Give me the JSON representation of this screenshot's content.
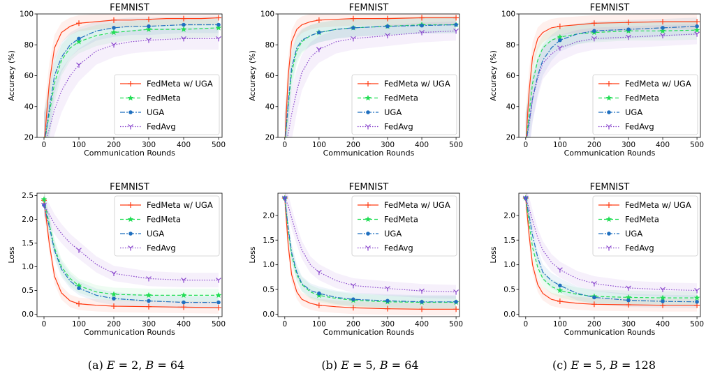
{
  "captions": [
    {
      "prefix": "(a) ",
      "e_sym": "E",
      "e_val": " = 2, ",
      "b_sym": "B",
      "b_val": " = 64"
    },
    {
      "prefix": "(b) ",
      "e_sym": "E",
      "e_val": " = 5, ",
      "b_sym": "B",
      "b_val": " = 64"
    },
    {
      "prefix": "(c) ",
      "e_sym": "E",
      "e_val": " = 5, ",
      "b_sym": "B",
      "b_val": " = 128"
    }
  ],
  "legend": [
    "FedMeta w/ UGA",
    "FedMeta",
    "UGA",
    "FedAvg"
  ],
  "colors": {
    "FedMeta w/ UGA": "#ff3c14",
    "FedMeta": "#22dd55",
    "UGA": "#1f6fbf",
    "FedAvg": "#8844cc"
  },
  "chart_data": [
    {
      "type": "line",
      "title": "FEMNIST",
      "xlabel": "Communication Rounds",
      "ylabel": "Accuracy (%)",
      "xlim": [
        -20,
        510
      ],
      "ylim": [
        20,
        100
      ],
      "xticks": [
        0,
        100,
        200,
        300,
        400,
        500
      ],
      "yticks": [
        20,
        40,
        60,
        80,
        100
      ],
      "tick_labels_y": [
        "20",
        "40",
        "60",
        "80",
        "100"
      ],
      "legend_loc": "lower right",
      "series": [
        {
          "name": "FedMeta w/ UGA",
          "x": [
            0,
            15,
            30,
            50,
            75,
            100,
            150,
            200,
            250,
            300,
            350,
            400,
            450,
            500
          ],
          "y": [
            15,
            55,
            78,
            88,
            92,
            94,
            95,
            96,
            96,
            96.5,
            97,
            97,
            97,
            97.5
          ]
        },
        {
          "name": "FedMeta",
          "x": [
            0,
            15,
            30,
            50,
            75,
            100,
            150,
            200,
            250,
            300,
            350,
            400,
            450,
            500
          ],
          "y": [
            15,
            35,
            55,
            70,
            78,
            82,
            86,
            88,
            89,
            90,
            90,
            90,
            90.5,
            91
          ]
        },
        {
          "name": "UGA",
          "x": [
            0,
            15,
            30,
            50,
            75,
            100,
            150,
            200,
            250,
            300,
            350,
            400,
            450,
            500
          ],
          "y": [
            15,
            38,
            60,
            72,
            80,
            84,
            89,
            91,
            92,
            92,
            92.5,
            93,
            93,
            93
          ]
        },
        {
          "name": "FedAvg",
          "x": [
            0,
            15,
            30,
            50,
            75,
            100,
            150,
            200,
            250,
            300,
            350,
            400,
            450,
            500
          ],
          "y": [
            15,
            25,
            38,
            50,
            60,
            67,
            76,
            80,
            82,
            83,
            83.5,
            84,
            84,
            84
          ]
        }
      ]
    },
    {
      "type": "line",
      "title": "FEMNIST",
      "xlabel": "Communication Rounds",
      "ylabel": "Accuracy (%)",
      "xlim": [
        -20,
        510
      ],
      "ylim": [
        20,
        100
      ],
      "xticks": [
        0,
        100,
        200,
        300,
        400,
        500
      ],
      "yticks": [
        20,
        40,
        60,
        80,
        100
      ],
      "tick_labels_y": [
        "20",
        "40",
        "60",
        "80",
        "100"
      ],
      "legend_loc": "lower right",
      "series": [
        {
          "name": "FedMeta w/ UGA",
          "x": [
            0,
            10,
            20,
            35,
            50,
            75,
            100,
            150,
            200,
            300,
            400,
            500
          ],
          "y": [
            15,
            60,
            82,
            90,
            93,
            95,
            96,
            96.5,
            97,
            97,
            97.5,
            97.5
          ]
        },
        {
          "name": "FedMeta",
          "x": [
            0,
            10,
            20,
            35,
            50,
            75,
            100,
            150,
            200,
            300,
            400,
            500
          ],
          "y": [
            15,
            40,
            62,
            76,
            82,
            86,
            88,
            90,
            91,
            92,
            93,
            93
          ]
        },
        {
          "name": "UGA",
          "x": [
            0,
            10,
            20,
            35,
            50,
            75,
            100,
            150,
            200,
            300,
            400,
            500
          ],
          "y": [
            15,
            42,
            65,
            78,
            83,
            86,
            88,
            90,
            91,
            92,
            92.5,
            93
          ]
        },
        {
          "name": "FedAvg",
          "x": [
            0,
            10,
            20,
            35,
            50,
            75,
            100,
            150,
            200,
            300,
            400,
            500
          ],
          "y": [
            15,
            22,
            35,
            50,
            62,
            72,
            77,
            82,
            84,
            86,
            88,
            89
          ]
        }
      ]
    },
    {
      "type": "line",
      "title": "FEMNIST",
      "xlabel": "Communication Rounds",
      "ylabel": "Accuracy (%)",
      "xlim": [
        -20,
        510
      ],
      "ylim": [
        20,
        100
      ],
      "xticks": [
        0,
        100,
        200,
        300,
        400,
        500
      ],
      "yticks": [
        20,
        40,
        60,
        80,
        100
      ],
      "tick_labels_y": [
        "20",
        "40",
        "60",
        "80",
        "100"
      ],
      "legend_loc": "lower right",
      "series": [
        {
          "name": "FedMeta w/ UGA",
          "x": [
            0,
            10,
            20,
            35,
            50,
            75,
            100,
            150,
            200,
            300,
            400,
            500
          ],
          "y": [
            15,
            50,
            72,
            84,
            88,
            91,
            92,
            93,
            94,
            94.5,
            95,
            95
          ]
        },
        {
          "name": "FedMeta",
          "x": [
            0,
            10,
            20,
            35,
            50,
            75,
            100,
            150,
            200,
            300,
            400,
            500
          ],
          "y": [
            15,
            35,
            55,
            70,
            78,
            83,
            85,
            87,
            88,
            89,
            89,
            89.5
          ]
        },
        {
          "name": "UGA",
          "x": [
            0,
            10,
            20,
            35,
            50,
            75,
            100,
            150,
            200,
            300,
            400,
            500
          ],
          "y": [
            15,
            30,
            45,
            60,
            70,
            78,
            83,
            87,
            89,
            90,
            91,
            92
          ]
        },
        {
          "name": "FedAvg",
          "x": [
            0,
            10,
            20,
            35,
            50,
            75,
            100,
            150,
            200,
            300,
            400,
            500
          ],
          "y": [
            15,
            28,
            45,
            58,
            68,
            74,
            78,
            82,
            84,
            85,
            86,
            87
          ]
        }
      ]
    },
    {
      "type": "line",
      "title": "FEMNIST",
      "xlabel": "Communication Rounds",
      "ylabel": "Loss",
      "xlim": [
        -20,
        510
      ],
      "ylim": [
        -0.05,
        2.55
      ],
      "xticks": [
        0,
        100,
        200,
        300,
        400,
        500
      ],
      "yticks": [
        0.0,
        0.5,
        1.0,
        1.5,
        2.0,
        2.5
      ],
      "tick_labels_y": [
        "0.0",
        "0.5",
        "1.0",
        "1.5",
        "2.0",
        "2.5"
      ],
      "legend_loc": "upper right",
      "series": [
        {
          "name": "FedMeta w/ UGA",
          "x": [
            0,
            15,
            30,
            50,
            75,
            100,
            150,
            200,
            300,
            400,
            500
          ],
          "y": [
            2.4,
            1.5,
            0.8,
            0.45,
            0.28,
            0.22,
            0.19,
            0.17,
            0.16,
            0.15,
            0.14
          ]
        },
        {
          "name": "FedMeta",
          "x": [
            0,
            15,
            30,
            50,
            75,
            100,
            150,
            200,
            300,
            400,
            500
          ],
          "y": [
            2.42,
            1.9,
            1.4,
            1.0,
            0.75,
            0.6,
            0.47,
            0.42,
            0.4,
            0.4,
            0.4
          ]
        },
        {
          "name": "UGA",
          "x": [
            0,
            15,
            30,
            50,
            75,
            100,
            150,
            200,
            300,
            400,
            500
          ],
          "y": [
            2.3,
            1.85,
            1.35,
            0.95,
            0.7,
            0.55,
            0.4,
            0.33,
            0.28,
            0.25,
            0.25
          ]
        },
        {
          "name": "FedAvg",
          "x": [
            0,
            15,
            30,
            50,
            75,
            100,
            150,
            200,
            300,
            400,
            500
          ],
          "y": [
            2.3,
            2.1,
            1.9,
            1.7,
            1.5,
            1.35,
            1.05,
            0.86,
            0.75,
            0.72,
            0.72
          ]
        }
      ]
    },
    {
      "type": "line",
      "title": "FEMNIST",
      "xlabel": "Communication Rounds",
      "ylabel": "Loss",
      "xlim": [
        -20,
        510
      ],
      "ylim": [
        -0.05,
        2.45
      ],
      "xticks": [
        0,
        100,
        200,
        300,
        400,
        500
      ],
      "yticks": [
        0.0,
        0.5,
        1.0,
        1.5,
        2.0
      ],
      "tick_labels_y": [
        "0.0",
        "0.5",
        "1.0",
        "1.5",
        "2.0"
      ],
      "legend_loc": "upper right",
      "series": [
        {
          "name": "FedMeta w/ UGA",
          "x": [
            0,
            10,
            20,
            35,
            50,
            75,
            100,
            150,
            200,
            300,
            400,
            500
          ],
          "y": [
            2.35,
            1.4,
            0.8,
            0.45,
            0.3,
            0.22,
            0.18,
            0.15,
            0.13,
            0.11,
            0.1,
            0.1
          ]
        },
        {
          "name": "FedMeta",
          "x": [
            0,
            10,
            20,
            35,
            50,
            75,
            100,
            150,
            200,
            300,
            400,
            500
          ],
          "y": [
            2.35,
            1.7,
            1.2,
            0.8,
            0.6,
            0.45,
            0.38,
            0.32,
            0.28,
            0.25,
            0.24,
            0.24
          ]
        },
        {
          "name": "UGA",
          "x": [
            0,
            10,
            20,
            35,
            50,
            75,
            100,
            150,
            200,
            300,
            400,
            500
          ],
          "y": [
            2.35,
            1.75,
            1.25,
            0.85,
            0.62,
            0.48,
            0.42,
            0.34,
            0.3,
            0.27,
            0.25,
            0.25
          ]
        },
        {
          "name": "FedAvg",
          "x": [
            0,
            10,
            20,
            35,
            50,
            75,
            100,
            150,
            200,
            300,
            400,
            500
          ],
          "y": [
            2.35,
            2.2,
            1.95,
            1.6,
            1.3,
            1.0,
            0.85,
            0.68,
            0.58,
            0.52,
            0.47,
            0.45
          ]
        }
      ]
    },
    {
      "type": "line",
      "title": "FEMNIST",
      "xlabel": "Communication Rounds",
      "ylabel": "Loss",
      "xlim": [
        -20,
        510
      ],
      "ylim": [
        -0.05,
        2.45
      ],
      "xticks": [
        0,
        100,
        200,
        300,
        400,
        500
      ],
      "yticks": [
        0.0,
        0.5,
        1.0,
        1.5,
        2.0
      ],
      "tick_labels_y": [
        "0.0",
        "0.5",
        "1.0",
        "1.5",
        "2.0"
      ],
      "legend_loc": "upper right",
      "series": [
        {
          "name": "FedMeta w/ UGA",
          "x": [
            0,
            10,
            20,
            35,
            50,
            75,
            100,
            150,
            200,
            300,
            400,
            500
          ],
          "y": [
            2.35,
            1.6,
            1.0,
            0.6,
            0.42,
            0.3,
            0.26,
            0.22,
            0.2,
            0.19,
            0.18,
            0.18
          ]
        },
        {
          "name": "FedMeta",
          "x": [
            0,
            10,
            20,
            35,
            50,
            75,
            100,
            150,
            200,
            300,
            400,
            500
          ],
          "y": [
            2.35,
            1.85,
            1.35,
            0.95,
            0.72,
            0.56,
            0.48,
            0.4,
            0.36,
            0.34,
            0.33,
            0.33
          ]
        },
        {
          "name": "UGA",
          "x": [
            0,
            10,
            20,
            35,
            50,
            75,
            100,
            150,
            200,
            300,
            400,
            500
          ],
          "y": [
            2.35,
            2.0,
            1.6,
            1.15,
            0.85,
            0.68,
            0.58,
            0.42,
            0.34,
            0.28,
            0.26,
            0.25
          ]
        },
        {
          "name": "FedAvg",
          "x": [
            0,
            10,
            20,
            35,
            50,
            75,
            100,
            150,
            200,
            300,
            400,
            500
          ],
          "y": [
            2.35,
            2.15,
            1.9,
            1.55,
            1.3,
            1.05,
            0.9,
            0.72,
            0.62,
            0.53,
            0.5,
            0.48
          ]
        }
      ]
    }
  ]
}
